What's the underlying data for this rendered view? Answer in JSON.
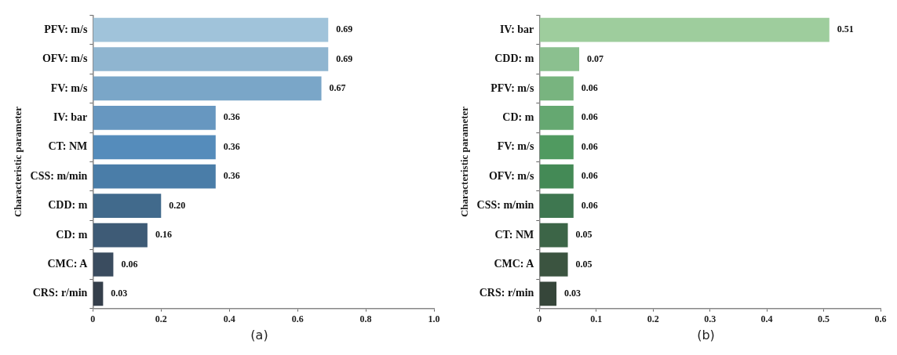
{
  "chart_data": [
    {
      "type": "bar",
      "orientation": "horizontal",
      "ylabel": "Characteristic parameter",
      "annotations": [
        "(a)"
      ],
      "categories": [
        "PFV: m/s",
        "OFV: m/s",
        "FV: m/s",
        "IV: bar",
        "CT: NM",
        "CSS: m/min",
        "CDD: m",
        "CD: m",
        "CMC: A",
        "CRS: r/min"
      ],
      "values": [
        0.69,
        0.69,
        0.67,
        0.36,
        0.36,
        0.36,
        0.2,
        0.16,
        0.06,
        0.03
      ],
      "value_labels": [
        "0.69",
        "0.69",
        "0.67",
        "0.36",
        "0.36",
        "0.36",
        "0.20",
        "0.16",
        "0.06",
        "0.03"
      ],
      "colors": [
        "#a0c3da",
        "#8fb5d0",
        "#7aa6c8",
        "#6797c0",
        "#558cbb",
        "#4a7da8",
        "#416a8c",
        "#3e5b76",
        "#3a4c5f",
        "#353f4b"
      ],
      "xlim": [
        0,
        1
      ],
      "xticks": [
        0,
        0.2,
        0.4,
        0.6,
        0.8,
        {
          "value": 1,
          "label": "1.0"
        }
      ]
    },
    {
      "type": "bar",
      "orientation": "horizontal",
      "ylabel": "Characteristic parameter",
      "annotations": [
        "(b)"
      ],
      "categories": [
        "IV: bar",
        "CDD: m",
        "PFV: m/s",
        "CD: m",
        "FV: m/s",
        "OFV: m/s",
        "CSS: m/min",
        "CT: NM",
        "CMC: A",
        "CRS: r/min"
      ],
      "values": [
        0.51,
        0.07,
        0.06,
        0.06,
        0.06,
        0.06,
        0.06,
        0.05,
        0.05,
        0.03
      ],
      "value_labels": [
        "0.51",
        "0.07",
        "0.06",
        "0.06",
        "0.06",
        "0.06",
        "0.06",
        "0.05",
        "0.05",
        "0.03"
      ],
      "colors": [
        "#9ecd9d",
        "#8bc08f",
        "#78b47f",
        "#65a871",
        "#509a60",
        "#448a56",
        "#3e7750",
        "#3c6547",
        "#3b5440",
        "#36463a"
      ],
      "xlim": [
        0,
        0.6
      ],
      "xticks": [
        0,
        0.1,
        0.2,
        0.3,
        0.4,
        0.5,
        0.6
      ]
    }
  ]
}
